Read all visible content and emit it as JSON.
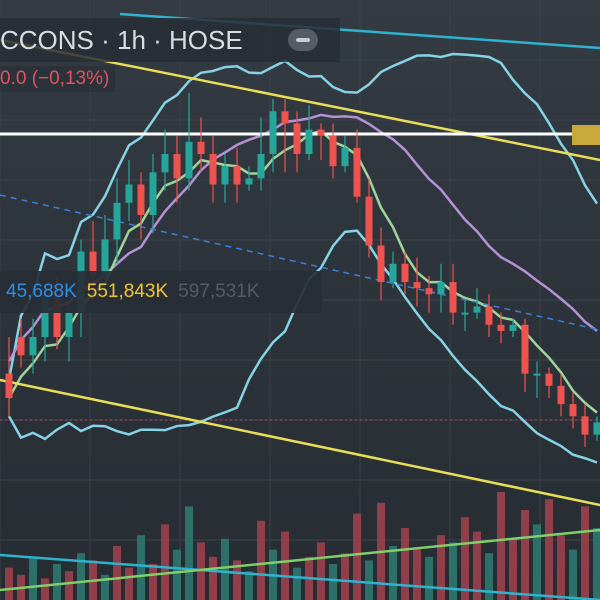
{
  "header": {
    "title": "CCONS · 1h · HOSE",
    "change": "0.0 (−0,13%)",
    "visibility_icon": "minus-eye-icon"
  },
  "volume_legend": {
    "v1": "45,688K",
    "v2": "551,843K",
    "v3": "597,531K"
  },
  "colors": {
    "up": "#26a69a",
    "down": "#ef5350",
    "bb_band": "#86d3e6",
    "ma_short": "#9fd49b",
    "ma_long": "#b591d6",
    "trend": "#e8de5a",
    "price_line": "#ffffff",
    "dashed_trend": "#3b7fd9",
    "vol_up": "#2f7d73",
    "vol_down": "#a3424d"
  },
  "chart_data": {
    "type": "candlestick",
    "ohlc": [
      [
        24,
        20,
        30,
        17
      ],
      [
        30,
        27,
        33,
        25
      ],
      [
        27,
        30,
        33,
        24
      ],
      [
        30,
        37,
        38,
        26
      ],
      [
        37,
        30,
        40,
        28
      ],
      [
        30,
        34,
        36,
        26
      ],
      [
        34,
        44,
        46,
        30
      ],
      [
        44,
        40,
        49,
        36
      ],
      [
        40,
        46,
        50,
        37
      ],
      [
        46,
        52,
        56,
        42
      ],
      [
        52,
        55,
        59,
        49
      ],
      [
        55,
        50,
        57,
        46
      ],
      [
        50,
        57,
        60,
        47
      ],
      [
        57,
        60,
        64,
        54
      ],
      [
        60,
        56,
        63,
        52
      ],
      [
        56,
        62,
        70,
        54
      ],
      [
        62,
        60,
        66,
        57
      ],
      [
        60,
        55,
        63,
        52
      ],
      [
        55,
        58,
        60,
        52
      ],
      [
        58,
        55,
        61,
        52
      ],
      [
        55,
        56,
        58,
        54
      ],
      [
        56,
        60,
        66,
        54
      ],
      [
        60,
        67,
        69,
        57
      ],
      [
        67,
        65,
        69,
        57
      ],
      [
        65,
        60,
        67,
        57
      ],
      [
        60,
        64,
        68,
        59
      ],
      [
        64,
        63,
        65,
        59
      ],
      [
        63,
        58,
        65,
        56
      ],
      [
        58,
        61,
        63,
        57
      ],
      [
        61,
        53,
        64,
        52
      ],
      [
        53,
        45,
        56,
        43
      ],
      [
        45,
        39,
        48,
        36
      ],
      [
        39,
        42,
        44,
        38
      ],
      [
        42,
        39,
        44,
        37
      ],
      [
        39,
        38,
        43,
        35
      ],
      [
        38,
        37,
        40,
        34
      ],
      [
        37,
        39,
        42,
        34
      ],
      [
        39,
        34,
        42,
        32
      ],
      [
        34,
        34,
        36,
        31
      ],
      [
        34,
        35,
        38,
        33
      ],
      [
        35,
        32,
        37,
        30
      ],
      [
        32,
        31,
        34,
        29
      ],
      [
        31,
        32,
        33,
        30
      ],
      [
        32,
        24,
        33,
        21
      ],
      [
        24,
        24,
        26,
        20
      ],
      [
        24,
        22,
        25,
        20
      ],
      [
        22,
        19,
        24,
        17
      ],
      [
        19,
        17,
        21,
        15
      ],
      [
        17,
        14,
        19,
        12
      ],
      [
        14,
        16,
        17,
        13
      ]
    ],
    "volume": [
      [
        1,
        9
      ],
      [
        1,
        7
      ],
      [
        0,
        12
      ],
      [
        1,
        6
      ],
      [
        0,
        10
      ],
      [
        1,
        8
      ],
      [
        0,
        13
      ],
      [
        1,
        11
      ],
      [
        0,
        7
      ],
      [
        1,
        15
      ],
      [
        1,
        9
      ],
      [
        0,
        18
      ],
      [
        1,
        10
      ],
      [
        1,
        21
      ],
      [
        0,
        14
      ],
      [
        0,
        26
      ],
      [
        1,
        16
      ],
      [
        1,
        12
      ],
      [
        0,
        17
      ],
      [
        1,
        11
      ],
      [
        0,
        8
      ],
      [
        1,
        22
      ],
      [
        0,
        14
      ],
      [
        1,
        19
      ],
      [
        0,
        9
      ],
      [
        1,
        12
      ],
      [
        1,
        16
      ],
      [
        0,
        10
      ],
      [
        1,
        13
      ],
      [
        1,
        24
      ],
      [
        0,
        11
      ],
      [
        1,
        27
      ],
      [
        0,
        15
      ],
      [
        1,
        20
      ],
      [
        1,
        14
      ],
      [
        0,
        12
      ],
      [
        1,
        18
      ],
      [
        0,
        16
      ],
      [
        1,
        23
      ],
      [
        1,
        19
      ],
      [
        0,
        13
      ],
      [
        1,
        30
      ],
      [
        1,
        17
      ],
      [
        1,
        25
      ],
      [
        0,
        21
      ],
      [
        1,
        28
      ],
      [
        1,
        18
      ],
      [
        0,
        14
      ],
      [
        1,
        26
      ],
      [
        0,
        20
      ]
    ]
  }
}
